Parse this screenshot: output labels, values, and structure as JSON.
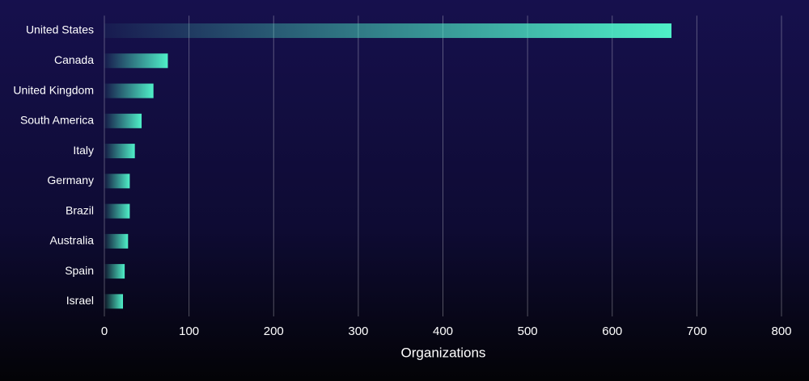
{
  "chart_data": {
    "type": "bar",
    "orientation": "horizontal",
    "x_label": "Organizations",
    "categories": [
      "United States",
      "Canada",
      "United Kingdom",
      "South America",
      "Italy",
      "Germany",
      "Brazil",
      "Australia",
      "Spain",
      "Israel"
    ],
    "values": [
      670,
      75,
      58,
      44,
      36,
      30,
      30,
      28,
      24,
      22
    ],
    "color": "#4ff0c8",
    "xlim": [
      0,
      800
    ],
    "xticks": [
      0,
      100,
      200,
      300,
      400,
      500,
      600,
      700,
      800
    ],
    "grid": true
  }
}
